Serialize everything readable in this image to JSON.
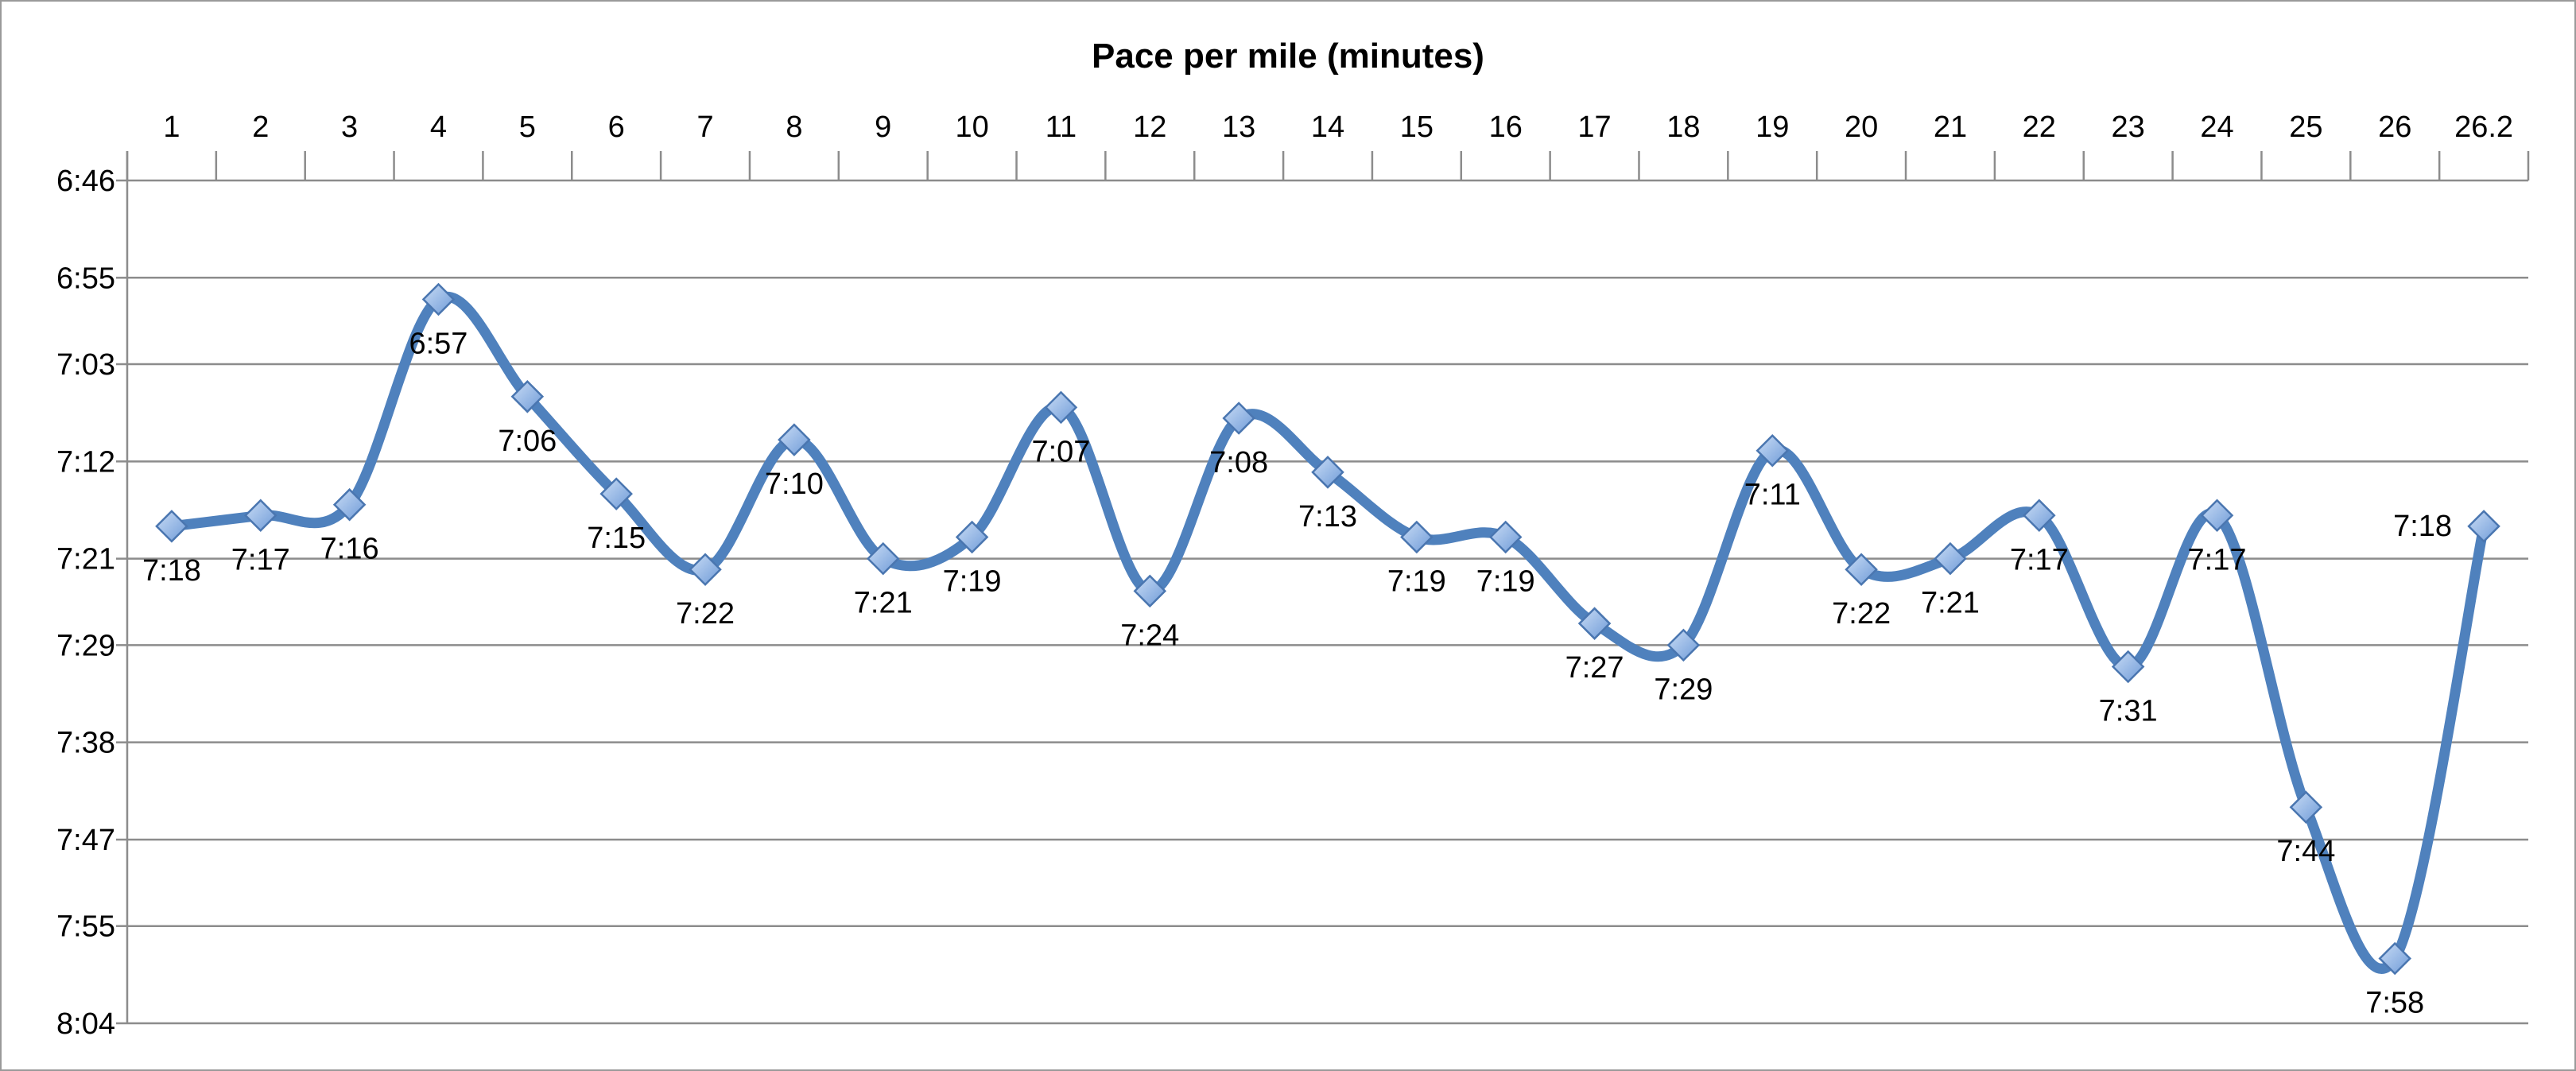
{
  "chart_data": {
    "type": "line",
    "title": "Pace per mile (minutes)",
    "categories": [
      "1",
      "2",
      "3",
      "4",
      "5",
      "6",
      "7",
      "8",
      "9",
      "10",
      "11",
      "12",
      "13",
      "14",
      "15",
      "16",
      "17",
      "18",
      "19",
      "20",
      "21",
      "22",
      "23",
      "24",
      "25",
      "26",
      "26.2"
    ],
    "series": [
      {
        "values": [
          "7:18",
          "7:17",
          "7:16",
          "6:57",
          "7:06",
          "7:15",
          "7:22",
          "7:10",
          "7:21",
          "7:19",
          "7:07",
          "7:24",
          "7:08",
          "7:13",
          "7:19",
          "7:19",
          "7:27",
          "7:29",
          "7:11",
          "7:22",
          "7:21",
          "7:17",
          "7:31",
          "7:17",
          "7:44",
          "7:58",
          "7:18"
        ],
        "color": "#4f81bd"
      }
    ],
    "y_axis": {
      "reversed": true,
      "ticks": [
        "6:46",
        "6:55",
        "7:03",
        "7:12",
        "7:21",
        "7:29",
        "7:38",
        "7:47",
        "7:55",
        "8:04"
      ],
      "min": "6:46",
      "max": "8:04"
    },
    "x_axis_position": "top",
    "grid": true,
    "smoothed": true,
    "marker": "diamond",
    "label_positions": [
      "below",
      "below",
      "below",
      "below",
      "below",
      "below",
      "below",
      "below",
      "below",
      "below",
      "below",
      "below",
      "below",
      "below",
      "below",
      "below",
      "below",
      "below",
      "below",
      "below",
      "below",
      "below",
      "below",
      "below",
      "below",
      "below",
      "left"
    ]
  }
}
